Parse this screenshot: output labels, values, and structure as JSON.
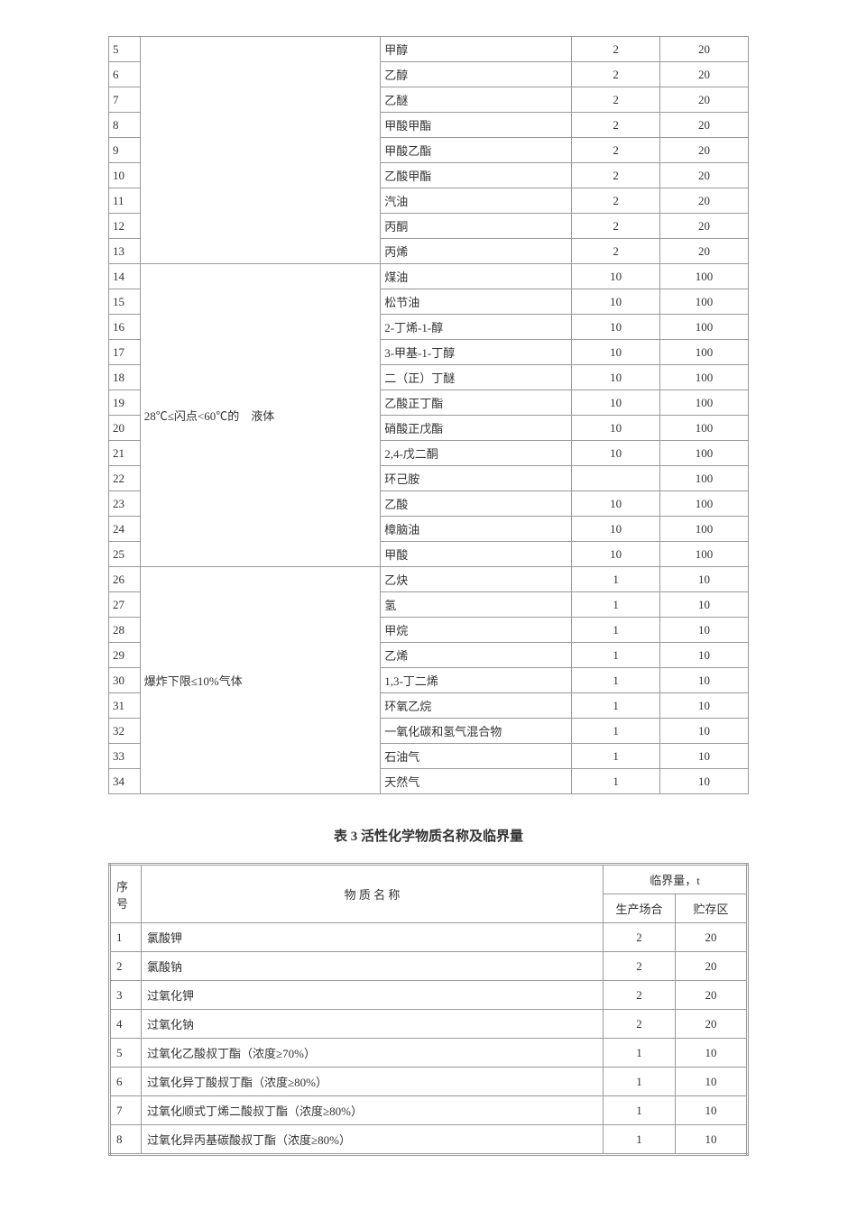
{
  "table1": {
    "groups": [
      {
        "category": "",
        "rows": [
          {
            "num": "5",
            "name": "甲醇",
            "v1": "2",
            "v2": "20"
          },
          {
            "num": "6",
            "name": "乙醇",
            "v1": "2",
            "v2": "20"
          },
          {
            "num": "7",
            "name": "乙醚",
            "v1": "2",
            "v2": "20"
          },
          {
            "num": "8",
            "name": "甲酸甲酯",
            "v1": "2",
            "v2": "20"
          },
          {
            "num": "9",
            "name": "甲酸乙酯",
            "v1": "2",
            "v2": "20"
          },
          {
            "num": "10",
            "name": "乙酸甲酯",
            "v1": "2",
            "v2": "20"
          },
          {
            "num": "11",
            "name": "汽油",
            "v1": "2",
            "v2": "20"
          },
          {
            "num": "12",
            "name": "丙酮",
            "v1": "2",
            "v2": "20"
          },
          {
            "num": "13",
            "name": "丙烯",
            "v1": "2",
            "v2": "20"
          }
        ]
      },
      {
        "category": "28℃≤闪点<60℃的　液体",
        "rows": [
          {
            "num": "14",
            "name": "煤油",
            "v1": "10",
            "v2": "100"
          },
          {
            "num": "15",
            "name": "松节油",
            "v1": "10",
            "v2": "100"
          },
          {
            "num": "16",
            "name": "2-丁烯-1-醇",
            "v1": "10",
            "v2": "100"
          },
          {
            "num": "17",
            "name": "3-甲基-1-丁醇",
            "v1": "10",
            "v2": "100"
          },
          {
            "num": "18",
            "name": "二（正）丁醚",
            "v1": "10",
            "v2": "100"
          },
          {
            "num": "19",
            "name": "乙酸正丁酯",
            "v1": "10",
            "v2": "100"
          },
          {
            "num": "20",
            "name": "硝酸正戊酯",
            "v1": "10",
            "v2": "100"
          },
          {
            "num": "21",
            "name": "2,4-戊二酮",
            "v1": "10",
            "v2": "100"
          },
          {
            "num": "22",
            "name": "环己胺",
            "v1": "",
            "v2": "100"
          },
          {
            "num": "23",
            "name": "乙酸",
            "v1": "10",
            "v2": "100"
          },
          {
            "num": "24",
            "name": "樟脑油",
            "v1": "10",
            "v2": "100"
          },
          {
            "num": "25",
            "name": "甲酸",
            "v1": "10",
            "v2": "100"
          }
        ]
      },
      {
        "category": "爆炸下限≤10%气体",
        "rows": [
          {
            "num": "26",
            "name": "乙炔",
            "v1": "1",
            "v2": "10"
          },
          {
            "num": "27",
            "name": "氢",
            "v1": "1",
            "v2": "10"
          },
          {
            "num": "28",
            "name": "甲烷",
            "v1": "1",
            "v2": "10"
          },
          {
            "num": "29",
            "name": "乙烯",
            "v1": "1",
            "v2": "10"
          },
          {
            "num": "30",
            "name": "1,3-丁二烯",
            "v1": "1",
            "v2": "10"
          },
          {
            "num": "31",
            "name": "环氧乙烷",
            "v1": "1",
            "v2": "10"
          },
          {
            "num": "32",
            "name": "一氧化碳和氢气混合物",
            "v1": "1",
            "v2": "10"
          },
          {
            "num": "33",
            "name": "石油气",
            "v1": "1",
            "v2": "10"
          },
          {
            "num": "34",
            "name": "天然气",
            "v1": "1",
            "v2": "10"
          }
        ]
      }
    ]
  },
  "table2": {
    "title": "表 3  活性化学物质名称及临界量",
    "headers": {
      "num": "序号",
      "name": "物 质 名 称",
      "limit": "临界量，t",
      "prod": "生产场合",
      "store": "贮存区"
    },
    "rows": [
      {
        "num": "1",
        "name": "氯酸钾",
        "v1": "2",
        "v2": "20"
      },
      {
        "num": "2",
        "name": "氯酸钠",
        "v1": "2",
        "v2": "20"
      },
      {
        "num": "3",
        "name": "过氧化钾",
        "v1": "2",
        "v2": "20"
      },
      {
        "num": "4",
        "name": "过氧化钠",
        "v1": "2",
        "v2": "20"
      },
      {
        "num": "5",
        "name": "过氧化乙酸叔丁酯（浓度≥70%）",
        "v1": "1",
        "v2": "10"
      },
      {
        "num": "6",
        "name": "过氧化异丁酸叔丁酯（浓度≥80%）",
        "v1": "1",
        "v2": "10"
      },
      {
        "num": "7",
        "name": "过氧化顺式丁烯二酸叔丁酯（浓度≥80%）",
        "v1": "1",
        "v2": "10"
      },
      {
        "num": "8",
        "name": "过氧化异丙基碳酸叔丁酯（浓度≥80%）",
        "v1": "1",
        "v2": "10"
      }
    ]
  }
}
